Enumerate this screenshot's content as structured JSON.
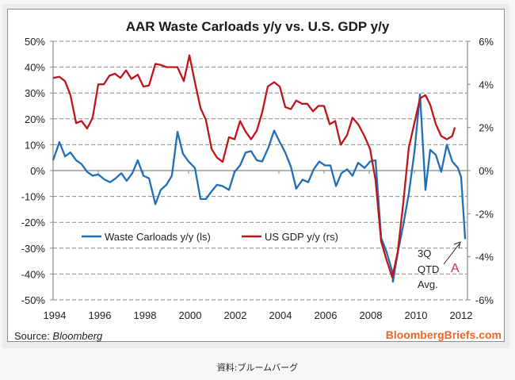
{
  "caption": "資料:ブルームバーグ",
  "chart_data": {
    "type": "line",
    "title": "AAR Waste Carloads y/y vs. U.S. GDP y/y",
    "source_label": "Source: ",
    "source_name": "Bloomberg",
    "brand": "BloombergBriefs.com",
    "annotation": {
      "lines": [
        "3Q",
        "QTD",
        "Avg."
      ],
      "marker": "A"
    },
    "x_axis": {
      "min": 1994,
      "max": 2012.4,
      "ticks": [
        "1994",
        "1996",
        "1998",
        "2000",
        "2002",
        "2004",
        "2006",
        "2008",
        "2010",
        "2012"
      ]
    },
    "y_left": {
      "min": -50,
      "max": 50,
      "step": 10,
      "unit": "%",
      "ticks": [
        "50%",
        "40%",
        "30%",
        "20%",
        "10%",
        "0%",
        "-10%",
        "-20%",
        "-30%",
        "-40%",
        "-50%"
      ]
    },
    "y_right": {
      "min": -6,
      "max": 6,
      "step": 2,
      "unit": "%",
      "ticks": [
        "6%",
        "4%",
        "2%",
        "0%",
        "-2%",
        "-4%",
        "-6%"
      ]
    },
    "grid": true,
    "legend_position": "lower-left",
    "series": [
      {
        "name": "Waste Carloads y/y (ls)",
        "axis": "left",
        "color": "#1f6fb8",
        "points": [
          [
            1994.0,
            4
          ],
          [
            1994.28,
            11
          ],
          [
            1994.53,
            5.5
          ],
          [
            1994.77,
            7
          ],
          [
            1995.02,
            4
          ],
          [
            1995.26,
            2.5
          ],
          [
            1995.51,
            -0.5
          ],
          [
            1995.75,
            -2
          ],
          [
            1996.0,
            -1.5
          ],
          [
            1996.28,
            -3.5
          ],
          [
            1996.53,
            -4.5
          ],
          [
            1996.77,
            -3
          ],
          [
            1997.02,
            -1
          ],
          [
            1997.26,
            -4
          ],
          [
            1997.51,
            -1
          ],
          [
            1997.75,
            4
          ],
          [
            1998.0,
            -2
          ],
          [
            1998.25,
            -3
          ],
          [
            1998.53,
            -13
          ],
          [
            1998.77,
            -7.5
          ],
          [
            1999.02,
            -5.5
          ],
          [
            1999.26,
            -2
          ],
          [
            1999.51,
            15
          ],
          [
            1999.75,
            6.5
          ],
          [
            2000.0,
            3.5
          ],
          [
            2000.28,
            1
          ],
          [
            2000.53,
            -11
          ],
          [
            2000.77,
            -11
          ],
          [
            2001.02,
            -8
          ],
          [
            2001.26,
            -5.5
          ],
          [
            2001.51,
            -6
          ],
          [
            2001.79,
            -7.5
          ],
          [
            2002.04,
            -0.5
          ],
          [
            2002.28,
            2
          ],
          [
            2002.53,
            7
          ],
          [
            2002.77,
            7.5
          ],
          [
            2003.02,
            4
          ],
          [
            2003.26,
            3.5
          ],
          [
            2003.54,
            9
          ],
          [
            2003.79,
            15.5
          ],
          [
            2004.04,
            11
          ],
          [
            2004.28,
            7
          ],
          [
            2004.53,
            1.5
          ],
          [
            2004.77,
            -7
          ],
          [
            2005.05,
            -3.5
          ],
          [
            2005.3,
            -4.5
          ],
          [
            2005.54,
            0.5
          ],
          [
            2005.79,
            3.5
          ],
          [
            2006.04,
            2
          ],
          [
            2006.28,
            2
          ],
          [
            2006.53,
            -6
          ],
          [
            2006.77,
            -1
          ],
          [
            2007.02,
            0.5
          ],
          [
            2007.26,
            -2
          ],
          [
            2007.51,
            3
          ],
          [
            2007.79,
            1
          ],
          [
            2008.04,
            3.5
          ],
          [
            2008.28,
            4
          ],
          [
            2008.53,
            -26
          ],
          [
            2008.77,
            -31.5
          ],
          [
            2009.02,
            -39
          ],
          [
            2009.05,
            -43
          ],
          [
            2009.26,
            -32
          ],
          [
            2009.51,
            -21
          ],
          [
            2009.75,
            -9
          ],
          [
            2010.0,
            7
          ],
          [
            2010.25,
            29.5
          ],
          [
            2010.49,
            -7.5
          ],
          [
            2010.7,
            8
          ],
          [
            2010.95,
            6
          ],
          [
            2011.19,
            -0.5
          ],
          [
            2011.44,
            10
          ],
          [
            2011.68,
            3.5
          ],
          [
            2011.93,
            1
          ],
          [
            2012.07,
            -2.5
          ],
          [
            2012.25,
            -26.5
          ]
        ]
      },
      {
        "name": "US GDP y/y (rs)",
        "axis": "right",
        "color": "#c0141c",
        "points": [
          [
            1994.0,
            4.3
          ],
          [
            1994.28,
            4.35
          ],
          [
            1994.53,
            4.15
          ],
          [
            1994.77,
            3.5
          ],
          [
            1995.02,
            2.2
          ],
          [
            1995.26,
            2.3
          ],
          [
            1995.51,
            1.95
          ],
          [
            1995.75,
            2.45
          ],
          [
            1996.0,
            4.0
          ],
          [
            1996.25,
            4.0
          ],
          [
            1996.49,
            4.4
          ],
          [
            1996.74,
            4.5
          ],
          [
            1996.98,
            4.3
          ],
          [
            1997.23,
            4.65
          ],
          [
            1997.47,
            4.25
          ],
          [
            1997.75,
            4.45
          ],
          [
            1998.0,
            3.9
          ],
          [
            1998.25,
            3.95
          ],
          [
            1998.53,
            4.95
          ],
          [
            1998.77,
            4.9
          ],
          [
            1999.02,
            4.8
          ],
          [
            1999.26,
            4.8
          ],
          [
            1999.51,
            4.8
          ],
          [
            1999.79,
            4.15
          ],
          [
            2000.04,
            5.35
          ],
          [
            2000.28,
            4.1
          ],
          [
            2000.53,
            2.9
          ],
          [
            2000.77,
            2.35
          ],
          [
            2001.02,
            1.0
          ],
          [
            2001.26,
            0.6
          ],
          [
            2001.51,
            0.4
          ],
          [
            2001.79,
            1.55
          ],
          [
            2002.04,
            1.45
          ],
          [
            2002.28,
            2.3
          ],
          [
            2002.53,
            1.8
          ],
          [
            2002.77,
            1.45
          ],
          [
            2003.02,
            1.85
          ],
          [
            2003.26,
            2.7
          ],
          [
            2003.51,
            3.9
          ],
          [
            2003.79,
            4.1
          ],
          [
            2004.04,
            3.9
          ],
          [
            2004.28,
            2.95
          ],
          [
            2004.53,
            2.85
          ],
          [
            2004.77,
            3.25
          ],
          [
            2005.02,
            3.1
          ],
          [
            2005.26,
            3.1
          ],
          [
            2005.51,
            2.75
          ],
          [
            2005.75,
            3.0
          ],
          [
            2006.0,
            3.0
          ],
          [
            2006.25,
            2.15
          ],
          [
            2006.49,
            2.3
          ],
          [
            2006.74,
            1.2
          ],
          [
            2007.02,
            1.65
          ],
          [
            2007.26,
            2.45
          ],
          [
            2007.51,
            2.15
          ],
          [
            2007.79,
            1.6
          ],
          [
            2008.04,
            1.0
          ],
          [
            2008.28,
            -0.45
          ],
          [
            2008.53,
            -3.3
          ],
          [
            2008.77,
            -4.15
          ],
          [
            2009.02,
            -4.95
          ],
          [
            2009.26,
            -3.8
          ],
          [
            2009.51,
            -1.5
          ],
          [
            2009.75,
            1.05
          ],
          [
            2010.0,
            2.2
          ],
          [
            2010.25,
            3.35
          ],
          [
            2010.49,
            3.5
          ],
          [
            2010.7,
            3.05
          ],
          [
            2010.95,
            2.15
          ],
          [
            2011.19,
            1.6
          ],
          [
            2011.44,
            1.45
          ],
          [
            2011.68,
            1.6
          ],
          [
            2011.79,
            2.0
          ]
        ]
      }
    ]
  }
}
